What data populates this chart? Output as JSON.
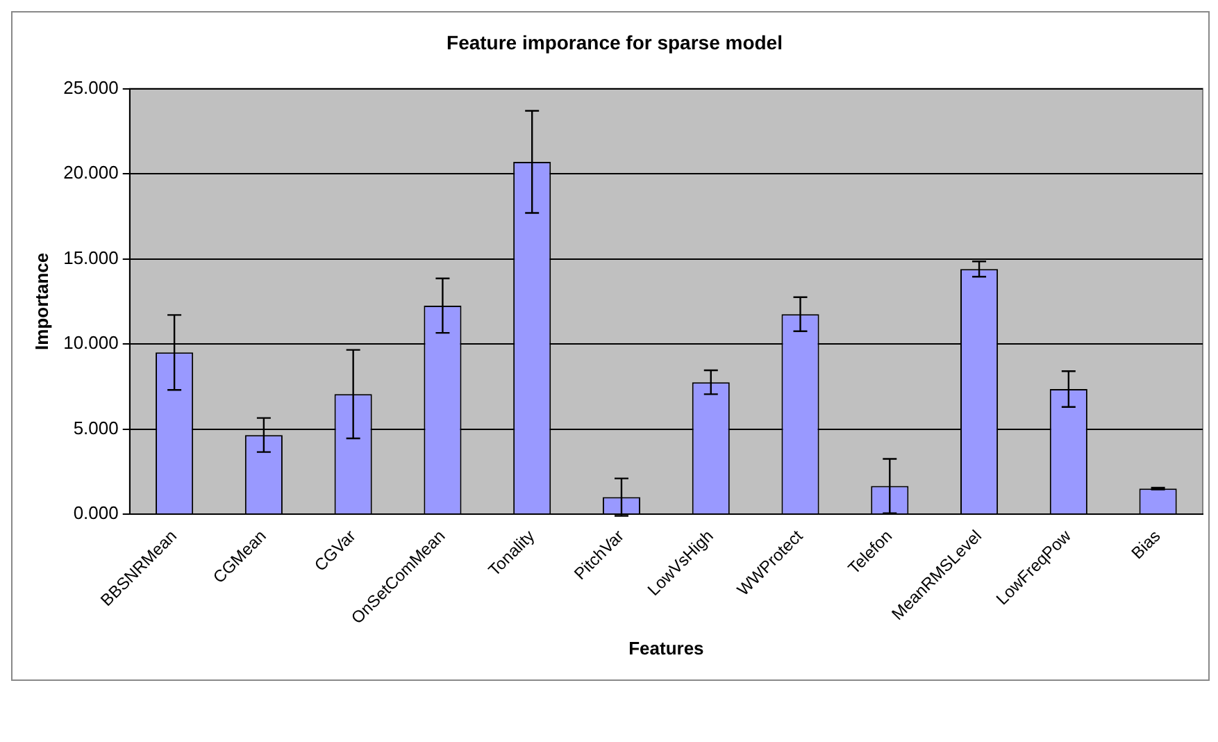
{
  "chart_data": {
    "type": "bar",
    "title": "Feature imporance for sparse model",
    "xlabel": "Features",
    "ylabel": "Importance",
    "categories": [
      "BBSNRMean",
      "CGMean",
      "CGVar",
      "OnSetComMean",
      "Tonality",
      "PitchVar",
      "LowVsHigh",
      "WWProtect",
      "Telefon",
      "MeanRMSLevel",
      "LowFreqPow",
      "Bias"
    ],
    "values": [
      9.5,
      4.65,
      7.05,
      12.25,
      20.7,
      1.0,
      7.75,
      11.75,
      1.65,
      14.4,
      7.35,
      1.5
    ],
    "errors": [
      2.2,
      1.0,
      2.6,
      1.6,
      3.0,
      1.1,
      0.7,
      1.0,
      1.6,
      0.45,
      1.05,
      0.05
    ],
    "color": "#9999ff",
    "ylim": [
      0,
      25
    ],
    "yticks": [
      {
        "value": 0,
        "label": "0.000"
      },
      {
        "value": 5,
        "label": "5.000"
      },
      {
        "value": 10,
        "label": "10.000"
      },
      {
        "value": 15,
        "label": "15.000"
      },
      {
        "value": 20,
        "label": "20.000"
      },
      {
        "value": 25,
        "label": "25.000"
      }
    ],
    "grid": "y",
    "legend": false
  }
}
